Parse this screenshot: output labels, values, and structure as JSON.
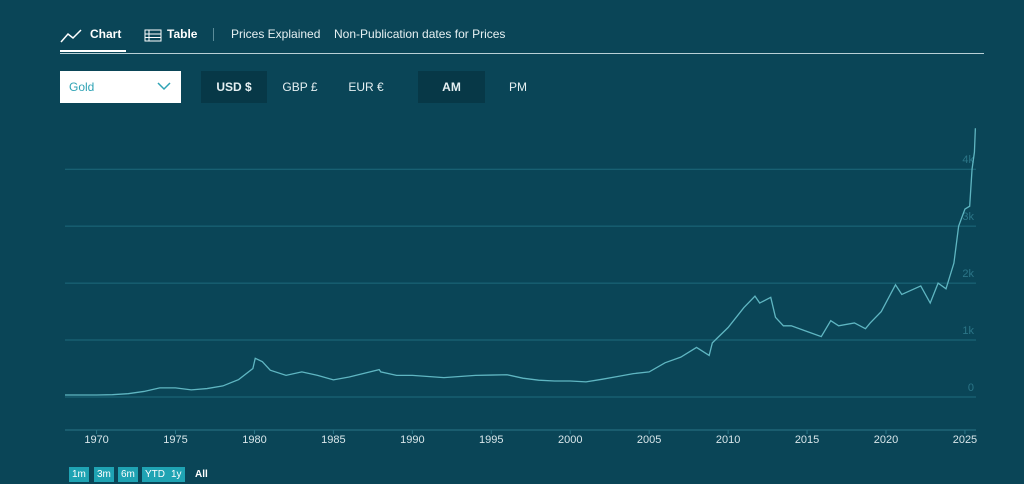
{
  "nav": [
    "Chart",
    "Table",
    "Prices Explained",
    "Non-Publication dates for Prices"
  ],
  "metal_select": "Gold",
  "currencies": [
    "USD $",
    "GBP £",
    "EUR €"
  ],
  "fix_times": [
    "AM",
    "PM"
  ],
  "ranges": [
    "1m",
    "3m",
    "6m",
    "YTD",
    "1y",
    "All"
  ],
  "chart_data": {
    "type": "line",
    "color": "#5fb6c2",
    "grid": true,
    "x": [
      1968,
      1970,
      1971,
      1972,
      1973,
      1974,
      1975,
      1976,
      1977,
      1978,
      1979,
      1979.9,
      1980.05,
      1980.5,
      1981,
      1982,
      1983,
      1984,
      1985,
      1986,
      1987.9,
      1988,
      1989,
      1990,
      1991,
      1992,
      1993,
      1994,
      1995,
      1996,
      1997,
      1998,
      1999,
      2000,
      2001,
      2002,
      2003,
      2004,
      2005,
      2006,
      2007,
      2008,
      2008.8,
      2009,
      2010,
      2011,
      2011.7,
      2012,
      2012.7,
      2013,
      2013.5,
      2014,
      2015,
      2015.9,
      2016.5,
      2017,
      2018,
      2018.7,
      2019,
      2019.7,
      2020.6,
      2021,
      2022.2,
      2022.8,
      2023.3,
      2023.8,
      2024.3,
      2024.6,
      2025.0,
      2025.3,
      2025.45,
      2025.6,
      2025.66
    ],
    "values": [
      35,
      35,
      40,
      58,
      97,
      160,
      160,
      125,
      148,
      194,
      306,
      500,
      680,
      620,
      470,
      380,
      440,
      380,
      300,
      350,
      480,
      440,
      380,
      380,
      360,
      340,
      360,
      380,
      385,
      390,
      330,
      295,
      280,
      280,
      265,
      310,
      360,
      410,
      440,
      600,
      700,
      870,
      730,
      950,
      1220,
      1570,
      1770,
      1650,
      1750,
      1400,
      1250,
      1250,
      1150,
      1060,
      1340,
      1250,
      1300,
      1200,
      1300,
      1500,
      1970,
      1800,
      1950,
      1650,
      2000,
      1900,
      2350,
      3000,
      3300,
      3350,
      4000,
      4300,
      4720
    ],
    "xlim": [
      1968,
      2025.7
    ],
    "xticks": [
      1970,
      1975,
      1980,
      1985,
      1990,
      1995,
      2000,
      2005,
      2010,
      2015,
      2020,
      2025
    ],
    "ylim": [
      -580,
      5040
    ],
    "yticks": [
      0,
      {
        "value": 1000,
        "label": "1k"
      },
      {
        "value": 2000,
        "label": "2k"
      },
      {
        "value": 3000,
        "label": "3k"
      },
      {
        "value": 4000,
        "label": "4k"
      }
    ]
  }
}
